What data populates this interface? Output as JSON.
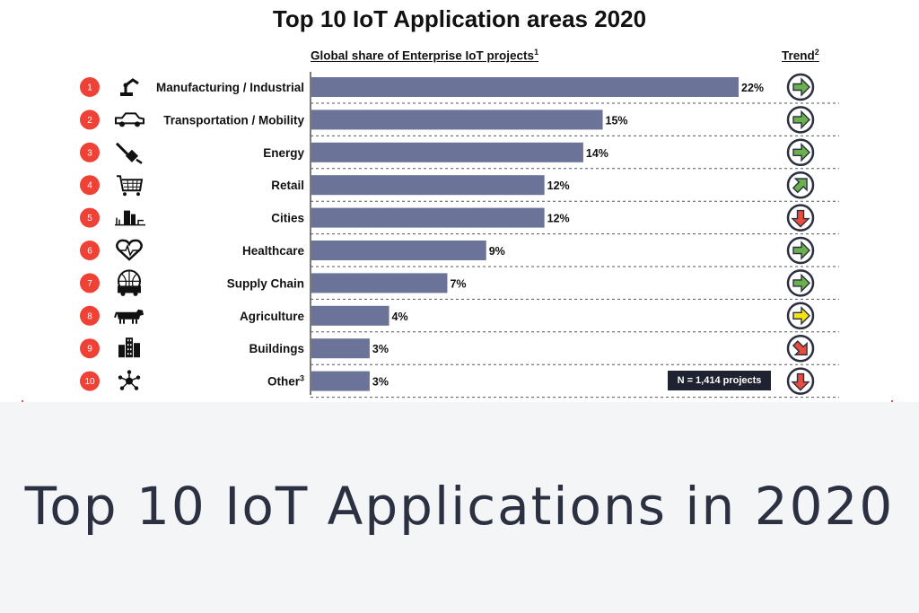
{
  "chart_data": {
    "type": "bar",
    "orientation": "horizontal",
    "title": "Top 10 IoT Application areas 2020",
    "value_header": "Global share of Enterprise IoT projects",
    "value_header_note": "1",
    "trend_header": "Trend",
    "trend_header_note": "2",
    "categories": [
      "Manufacturing / Industrial",
      "Transportation / Mobility",
      "Energy",
      "Retail",
      "Cities",
      "Healthcare",
      "Supply Chain",
      "Agriculture",
      "Buildings",
      "Other"
    ],
    "category_notes": [
      "",
      "",
      "",
      "",
      "",
      "",
      "",
      "",
      "",
      "3"
    ],
    "ranks": [
      "1",
      "2",
      "3",
      "4",
      "5",
      "6",
      "7",
      "8",
      "9",
      "10"
    ],
    "values": [
      22,
      15,
      14,
      12,
      12,
      9,
      7,
      4,
      3,
      3
    ],
    "value_labels": [
      "22%",
      "15%",
      "14%",
      "12%",
      "12%",
      "9%",
      "7%",
      "4%",
      "3%",
      "3%"
    ],
    "icons": [
      "robot-arm-icon",
      "car-icon",
      "plug-icon",
      "shopping-cart-icon",
      "city-icon",
      "heart-pulse-icon",
      "globe-truck-icon",
      "cow-icon",
      "buildings-icon",
      "network-icon"
    ],
    "trends": [
      "right",
      "right",
      "right",
      "up-right",
      "down",
      "right",
      "right",
      "right",
      "down-right",
      "down"
    ],
    "trend_colors": [
      "#6ab04c",
      "#6ab04c",
      "#6ab04c",
      "#6ab04c",
      "#e74c3c",
      "#6ab04c",
      "#6ab04c",
      "#f1e40f",
      "#e74c3c",
      "#e74c3c"
    ],
    "xlim": [
      0,
      22
    ],
    "sample_note": "N = 1,414 projects",
    "bar_color": "#6b7399",
    "rank_badge_color": "#ef4136"
  },
  "caption": "Top 10 IoT Applications in 2020"
}
